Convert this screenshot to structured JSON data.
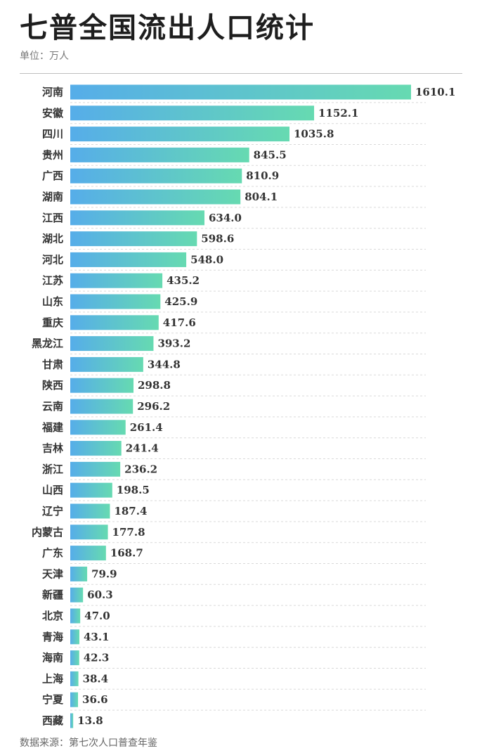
{
  "header": {
    "title": "七普全国流出人口统计",
    "unit": "单位：万人"
  },
  "footer": {
    "source": "数据来源：第七次人口普查年鉴"
  },
  "colors": {
    "bar_start": "#56ade9",
    "bar_end": "#66dab1",
    "gridline": "#d9d9d9"
  },
  "chart_data": {
    "type": "bar",
    "orientation": "horizontal",
    "title": "七普全国流出人口统计",
    "unit": "单位：万人",
    "grid": "dashed horizontal separators",
    "categories": [
      "河南",
      "安徽",
      "四川",
      "贵州",
      "广西",
      "湖南",
      "江西",
      "湖北",
      "河北",
      "江苏",
      "山东",
      "重庆",
      "黑龙江",
      "甘肃",
      "陕西",
      "云南",
      "福建",
      "吉林",
      "浙江",
      "山西",
      "辽宁",
      "内蒙古",
      "广东",
      "天津",
      "新疆",
      "北京",
      "青海",
      "海南",
      "上海",
      "宁夏",
      "西藏"
    ],
    "values": [
      1610.1,
      1152.1,
      1035.8,
      845.5,
      810.9,
      804.1,
      634.0,
      598.6,
      548.0,
      435.2,
      425.9,
      417.6,
      393.2,
      344.8,
      298.8,
      296.2,
      261.4,
      241.4,
      236.2,
      198.5,
      187.4,
      177.8,
      168.7,
      79.9,
      60.3,
      47.0,
      43.1,
      42.3,
      38.4,
      36.6,
      13.8
    ],
    "value_labels": [
      "1610.1",
      "1152.1",
      "1035.8",
      "845.5",
      "810.9",
      "804.1",
      "634.0",
      "598.6",
      "548.0",
      "435.2",
      "425.9",
      "417.6",
      "393.2",
      "344.8",
      "298.8",
      "296.2",
      "261.4",
      "241.4",
      "236.2",
      "198.5",
      "187.4",
      "177.8",
      "168.7",
      "79.9",
      "60.3",
      "47.0",
      "43.1",
      "42.3",
      "38.4",
      "36.6",
      "13.8"
    ],
    "xlim": [
      0,
      1610.1
    ]
  }
}
